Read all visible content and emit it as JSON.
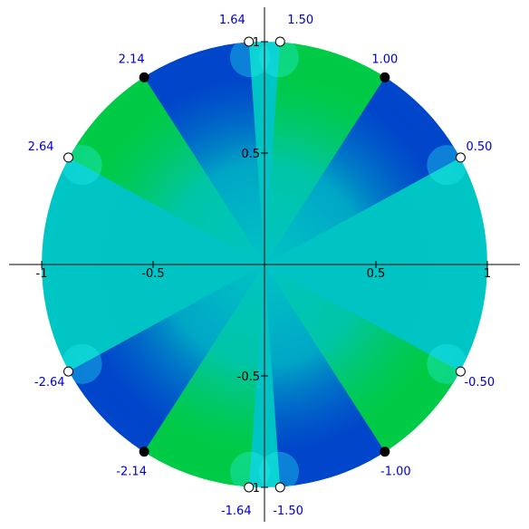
{
  "chart_data": {
    "type": "scatter",
    "title": "",
    "xlabel": "",
    "ylabel": "",
    "xlim": [
      -1.1,
      1.1
    ],
    "ylim": [
      -1.1,
      1.1
    ],
    "grid": false,
    "x_ticks": [
      {
        "value": -1,
        "label": "-1"
      },
      {
        "value": -0.5,
        "label": "-0.5"
      },
      {
        "value": 0.5,
        "label": "0.5"
      },
      {
        "value": 1,
        "label": "1"
      }
    ],
    "y_ticks": [
      {
        "value": 1,
        "label": "1"
      },
      {
        "value": 0.5,
        "label": "0.5"
      },
      {
        "value": -0.5,
        "label": "-0.5"
      },
      {
        "value": -1,
        "label": "-1"
      }
    ],
    "label_color": "#0000cc",
    "disk": {
      "radius": 1,
      "colors": [
        "#0000cc",
        "#00cc00",
        "#00cccc",
        "#33ffff"
      ]
    },
    "points": [
      {
        "label": "1.50",
        "x": 0.07,
        "y": 1.0,
        "filled": false
      },
      {
        "label": "1.00",
        "x": 0.54,
        "y": 0.84,
        "filled": true
      },
      {
        "label": "0.50",
        "x": 0.88,
        "y": 0.48,
        "filled": false
      },
      {
        "label": "-0.50",
        "x": 0.88,
        "y": -0.48,
        "filled": false
      },
      {
        "label": "-1.00",
        "x": 0.54,
        "y": -0.84,
        "filled": true
      },
      {
        "label": "-1.50",
        "x": 0.07,
        "y": -1.0,
        "filled": false
      },
      {
        "label": "-1.64",
        "x": -0.07,
        "y": -1.0,
        "filled": false
      },
      {
        "label": "-2.14",
        "x": -0.54,
        "y": -0.84,
        "filled": true
      },
      {
        "label": "-2.64",
        "x": -0.88,
        "y": -0.48,
        "filled": false
      },
      {
        "label": "2.64",
        "x": -0.88,
        "y": 0.48,
        "filled": false
      },
      {
        "label": "2.14",
        "x": -0.54,
        "y": 0.84,
        "filled": true
      },
      {
        "label": "1.64",
        "x": -0.07,
        "y": 1.0,
        "filled": false
      }
    ]
  }
}
